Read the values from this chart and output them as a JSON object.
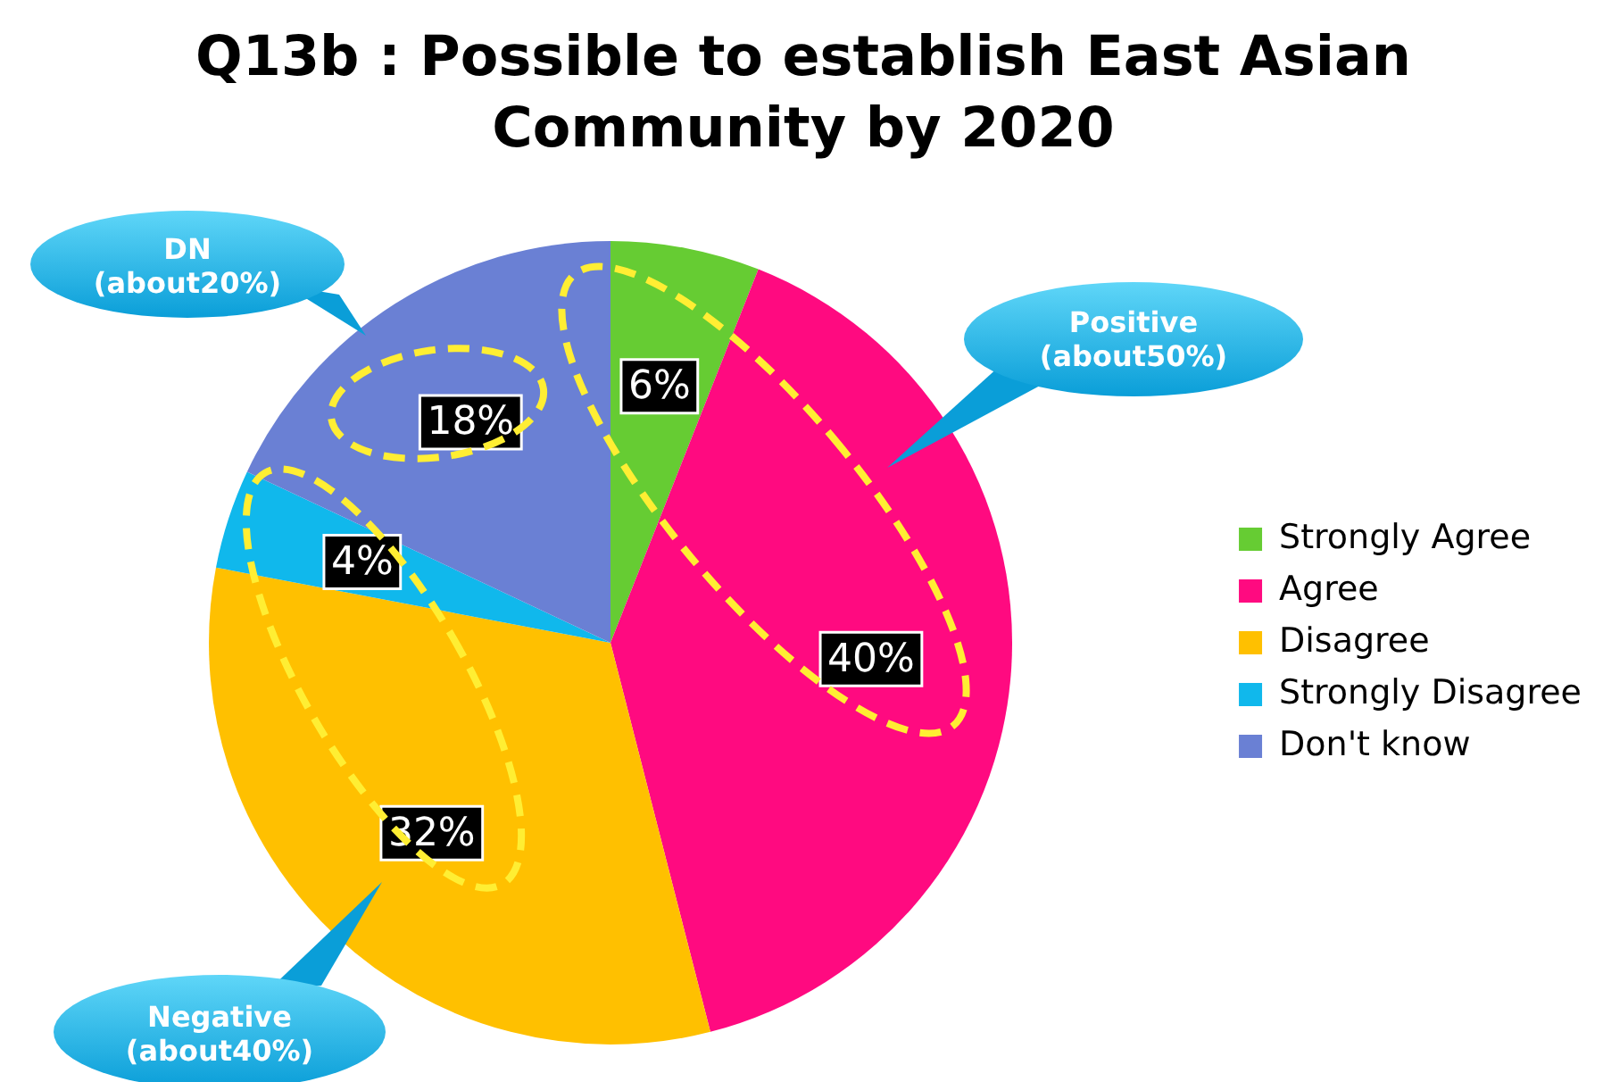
{
  "chart_data": {
    "type": "pie",
    "title": "Q13b : Possible to establish East Asian Community by 2020",
    "categories": [
      "Strongly Agree",
      "Agree",
      "Disagree",
      "Strongly Disagree",
      "Don't know"
    ],
    "values": [
      6,
      40,
      32,
      4,
      18
    ],
    "colors": [
      "#66cc33",
      "#ff0a80",
      "#ffc000",
      "#10b8ec",
      "#6a80d4"
    ],
    "value_labels": [
      "6%",
      "40%",
      "32%",
      "4%",
      "18%"
    ],
    "legend": "right",
    "annotations": [
      "DN\n(about20%)",
      "Positive\n(about50%)",
      "Negative\n(about40%)"
    ]
  }
}
